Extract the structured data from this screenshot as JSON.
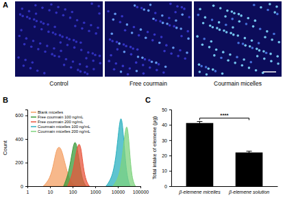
{
  "panel_a": {
    "label": "A",
    "images": [
      "Control",
      "Free courmain",
      "Courmain micelles"
    ]
  },
  "chart_data": [
    {
      "type": "area",
      "annotations": [
        "B"
      ],
      "y_label": "Count",
      "log": "x",
      "xlim": [
        1,
        100000
      ],
      "xticks": [
        1,
        10,
        100,
        1000,
        10000,
        100000
      ],
      "ylim": [
        0,
        650
      ],
      "yticks": [
        0,
        200,
        400,
        600
      ],
      "legend": "top-left",
      "series": [
        {
          "name": "Blank micelles",
          "color": "#f4a064",
          "x": [
            5,
            10,
            15,
            20,
            30,
            45,
            70,
            100,
            150
          ],
          "values": [
            0,
            60,
            200,
            330,
            340,
            200,
            60,
            15,
            0
          ]
        },
        {
          "name": "Free courmain 100 ng/mL",
          "color": "#3a9a3a",
          "x": [
            40,
            70,
            100,
            130,
            170,
            230,
            300,
            400
          ],
          "values": [
            0,
            120,
            320,
            400,
            300,
            120,
            30,
            0
          ]
        },
        {
          "name": "Free courmain 200 ng/mL",
          "color": "#e8553c",
          "x": [
            60,
            100,
            140,
            190,
            240,
            300,
            400,
            550
          ],
          "values": [
            0,
            100,
            280,
            380,
            320,
            150,
            40,
            0
          ]
        },
        {
          "name": "Courmain micelles 100 ng/mL",
          "color": "#2ab0c0",
          "x": [
            3000,
            6000,
            9000,
            12000,
            15000,
            19000,
            25000,
            35000
          ],
          "values": [
            0,
            80,
            300,
            560,
            600,
            350,
            80,
            0
          ]
        },
        {
          "name": "Courmain micelles 200 ng/mL",
          "color": "#7ed37e",
          "x": [
            6000,
            12000,
            17000,
            22000,
            27000,
            33000,
            42000,
            60000
          ],
          "values": [
            0,
            80,
            300,
            500,
            520,
            300,
            60,
            0
          ]
        }
      ]
    },
    {
      "type": "bar",
      "annotations": [
        "C",
        "****"
      ],
      "y_label": "Total intake of elemene (μg)",
      "categories": [
        "β-elemene micelles",
        "β-elemene solution"
      ],
      "values": [
        41.2,
        22.0
      ],
      "errors": [
        1.0,
        0.8
      ],
      "color": "#000000",
      "ylim": [
        0,
        50
      ],
      "yticks": [
        0,
        10,
        20,
        30,
        40,
        50
      ]
    }
  ]
}
